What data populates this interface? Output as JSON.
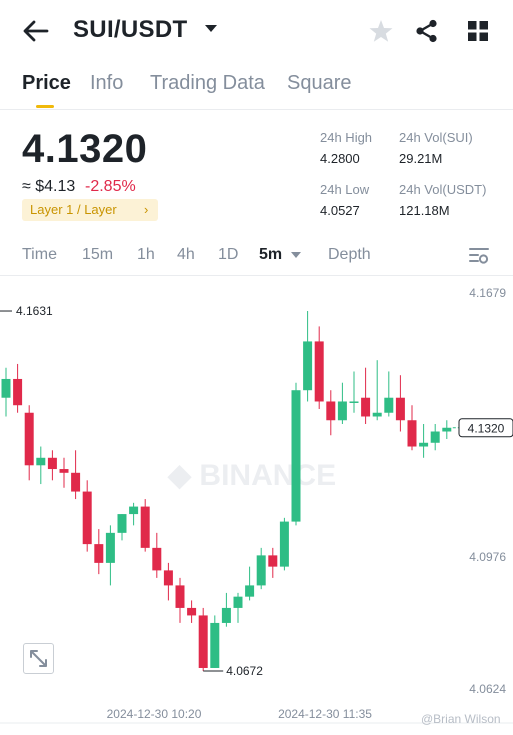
{
  "header": {
    "pair": "SUI/USDT",
    "icons": [
      "back-arrow-icon",
      "caret-down-icon",
      "star-icon",
      "share-icon",
      "grid-icon"
    ]
  },
  "tabs": [
    {
      "label": "Price",
      "active": true
    },
    {
      "label": "Info",
      "active": false
    },
    {
      "label": "Trading Data",
      "active": false
    },
    {
      "label": "Square",
      "active": false
    }
  ],
  "ticker": {
    "last_price": "4.1320",
    "fiat_price": "≈ $4.13",
    "change": "-2.85%",
    "tag": "Layer 1 / Layer",
    "tag_arrow": "›"
  },
  "stats": {
    "high_label": "24h High",
    "high_value": "4.2800",
    "low_label": "24h Low",
    "low_value": "4.0527",
    "vol_base_label": "24h Vol(SUI)",
    "vol_base_value": "29.21M",
    "vol_quote_label": "24h Vol(USDT)",
    "vol_quote_value": "121.18M"
  },
  "intervals": {
    "items": [
      "Time",
      "15m",
      "1h",
      "4h",
      "1D",
      "5m",
      "Depth"
    ],
    "active": "5m"
  },
  "colors": {
    "up": "#2ebd85",
    "down": "#e0294a",
    "accent": "#f0b90b",
    "text_primary": "#1e2329",
    "text_secondary": "#848e9c"
  },
  "chart_data": {
    "type": "candlestick",
    "interval": "5m",
    "y_axis_ticks": [
      "4.1679",
      "4.1327",
      "4.0976",
      "4.0624"
    ],
    "y_range": [
      4.0624,
      4.1679
    ],
    "x_axis_ticks": [
      "2024-12-30 10:20",
      "2024-12-30 11:35"
    ],
    "high_marker": "4.1631",
    "low_marker": "4.0672",
    "last_price_label": "4.1320",
    "watermark": "BINANCE",
    "candles": [
      {
        "o": 4.14,
        "h": 4.148,
        "l": 4.135,
        "c": 4.145
      },
      {
        "o": 4.145,
        "h": 4.149,
        "l": 4.136,
        "c": 4.138
      },
      {
        "o": 4.136,
        "h": 4.138,
        "l": 4.118,
        "c": 4.122
      },
      {
        "o": 4.122,
        "h": 4.127,
        "l": 4.117,
        "c": 4.124
      },
      {
        "o": 4.124,
        "h": 4.126,
        "l": 4.118,
        "c": 4.121
      },
      {
        "o": 4.121,
        "h": 4.124,
        "l": 4.116,
        "c": 4.12
      },
      {
        "o": 4.12,
        "h": 4.126,
        "l": 4.113,
        "c": 4.115
      },
      {
        "o": 4.115,
        "h": 4.118,
        "l": 4.099,
        "c": 4.101
      },
      {
        "o": 4.101,
        "h": 4.105,
        "l": 4.093,
        "c": 4.096
      },
      {
        "o": 4.096,
        "h": 4.106,
        "l": 4.09,
        "c": 4.104
      },
      {
        "o": 4.104,
        "h": 4.109,
        "l": 4.102,
        "c": 4.109
      },
      {
        "o": 4.109,
        "h": 4.112,
        "l": 4.106,
        "c": 4.111
      },
      {
        "o": 4.111,
        "h": 4.113,
        "l": 4.099,
        "c": 4.1
      },
      {
        "o": 4.1,
        "h": 4.104,
        "l": 4.092,
        "c": 4.094
      },
      {
        "o": 4.094,
        "h": 4.096,
        "l": 4.086,
        "c": 4.09
      },
      {
        "o": 4.09,
        "h": 4.092,
        "l": 4.08,
        "c": 4.084
      },
      {
        "o": 4.084,
        "h": 4.086,
        "l": 4.08,
        "c": 4.082
      },
      {
        "o": 4.082,
        "h": 4.084,
        "l": 4.0672,
        "c": 4.068
      },
      {
        "o": 4.068,
        "h": 4.082,
        "l": 4.068,
        "c": 4.08
      },
      {
        "o": 4.08,
        "h": 4.088,
        "l": 4.079,
        "c": 4.084
      },
      {
        "o": 4.084,
        "h": 4.088,
        "l": 4.08,
        "c": 4.087
      },
      {
        "o": 4.087,
        "h": 4.095,
        "l": 4.086,
        "c": 4.09
      },
      {
        "o": 4.09,
        "h": 4.1,
        "l": 4.089,
        "c": 4.098
      },
      {
        "o": 4.098,
        "h": 4.1,
        "l": 4.092,
        "c": 4.095
      },
      {
        "o": 4.095,
        "h": 4.108,
        "l": 4.094,
        "c": 4.107
      },
      {
        "o": 4.107,
        "h": 4.144,
        "l": 4.106,
        "c": 4.142
      },
      {
        "o": 4.142,
        "h": 4.1631,
        "l": 4.139,
        "c": 4.155
      },
      {
        "o": 4.155,
        "h": 4.159,
        "l": 4.137,
        "c": 4.139
      },
      {
        "o": 4.139,
        "h": 4.142,
        "l": 4.13,
        "c": 4.134
      },
      {
        "o": 4.134,
        "h": 4.144,
        "l": 4.133,
        "c": 4.139
      },
      {
        "o": 4.139,
        "h": 4.147,
        "l": 4.136,
        "c": 4.139
      },
      {
        "o": 4.14,
        "h": 4.148,
        "l": 4.133,
        "c": 4.135
      },
      {
        "o": 4.135,
        "h": 4.15,
        "l": 4.134,
        "c": 4.136
      },
      {
        "o": 4.136,
        "h": 4.147,
        "l": 4.135,
        "c": 4.14
      },
      {
        "o": 4.14,
        "h": 4.146,
        "l": 4.131,
        "c": 4.134
      },
      {
        "o": 4.134,
        "h": 4.138,
        "l": 4.126,
        "c": 4.127
      },
      {
        "o": 4.127,
        "h": 4.133,
        "l": 4.124,
        "c": 4.128
      },
      {
        "o": 4.128,
        "h": 4.133,
        "l": 4.126,
        "c": 4.131
      },
      {
        "o": 4.131,
        "h": 4.134,
        "l": 4.129,
        "c": 4.132
      }
    ]
  }
}
